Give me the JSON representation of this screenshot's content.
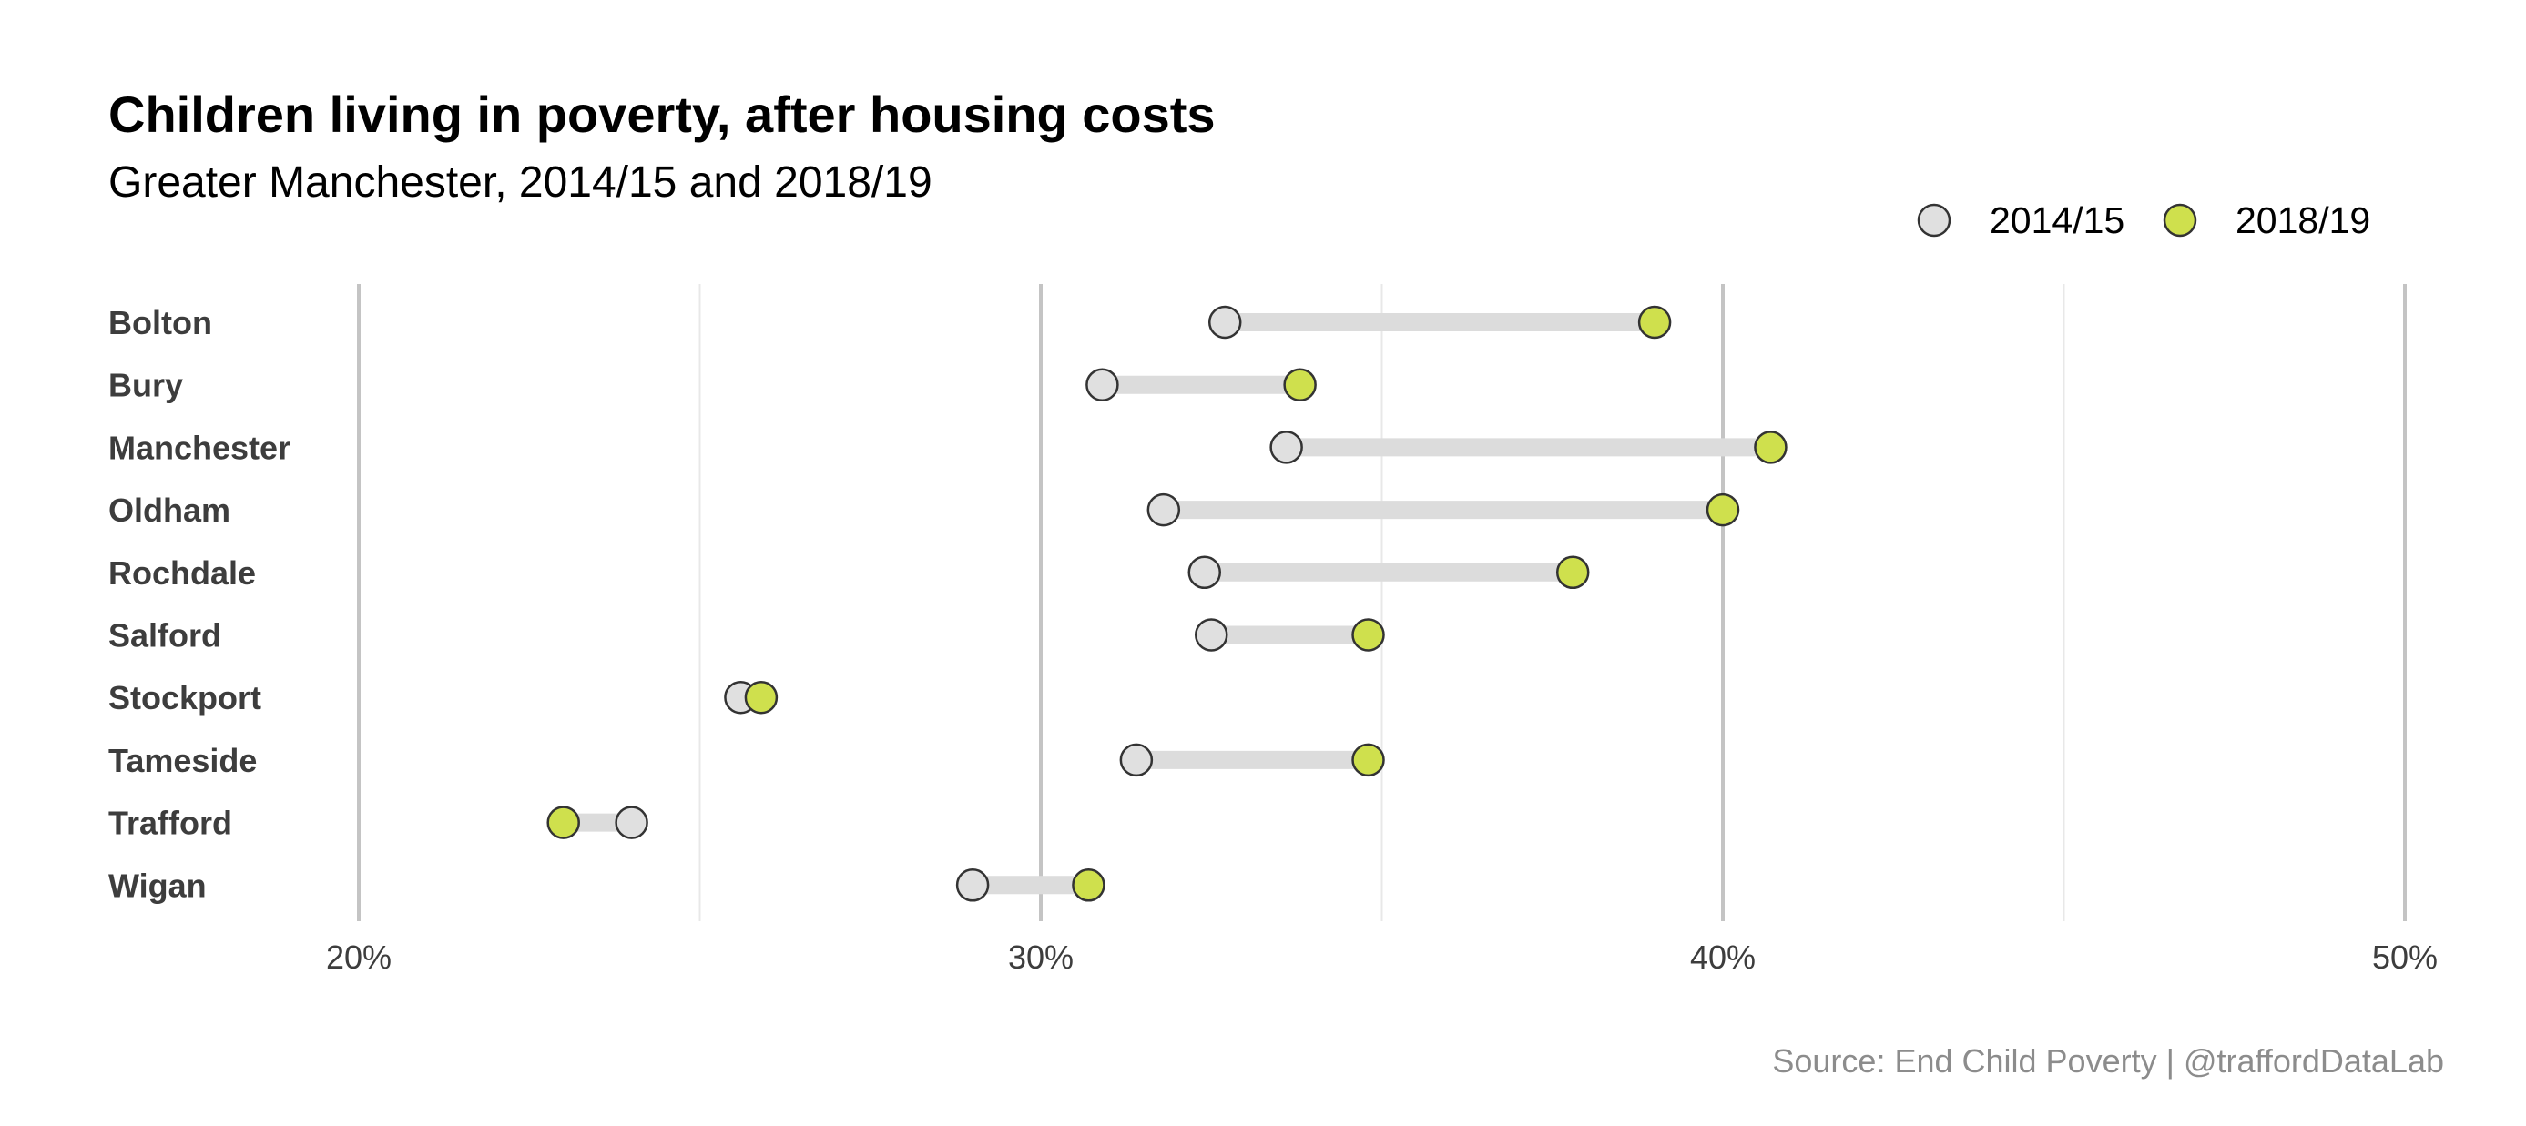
{
  "chart_data": {
    "type": "dumbbell",
    "title": "Children living in poverty, after housing costs",
    "subtitle": "Greater Manchester, 2014/15 and 2018/19",
    "caption": "Source: End Child Poverty | @traffordDataLab",
    "xlim": [
      16.5,
      51
    ],
    "x_ticks": [
      20,
      30,
      40,
      50
    ],
    "x_tick_labels": [
      "20%",
      "30%",
      "40%",
      "50%"
    ],
    "x_minor_ticks": [
      25,
      35,
      45
    ],
    "legend_position": "top-right",
    "categories": [
      "Bolton",
      "Bury",
      "Manchester",
      "Oldham",
      "Rochdale",
      "Salford",
      "Stockport",
      "Tameside",
      "Trafford",
      "Wigan"
    ],
    "series": [
      {
        "name": "2014/15",
        "color": "#e0e0e0",
        "values": [
          32.7,
          30.9,
          33.6,
          31.8,
          32.4,
          32.5,
          25.6,
          31.4,
          24.0,
          29.0
        ]
      },
      {
        "name": "2018/19",
        "color": "#cfe04d",
        "values": [
          39.0,
          33.8,
          40.7,
          40.0,
          37.8,
          34.8,
          25.9,
          34.8,
          23.0,
          30.7
        ]
      }
    ],
    "colors": {
      "connector": "#dcdcdc",
      "point_stroke": "#333333",
      "grid_major": "#c4c4c4",
      "grid_minor": "#e8e8e8"
    }
  }
}
